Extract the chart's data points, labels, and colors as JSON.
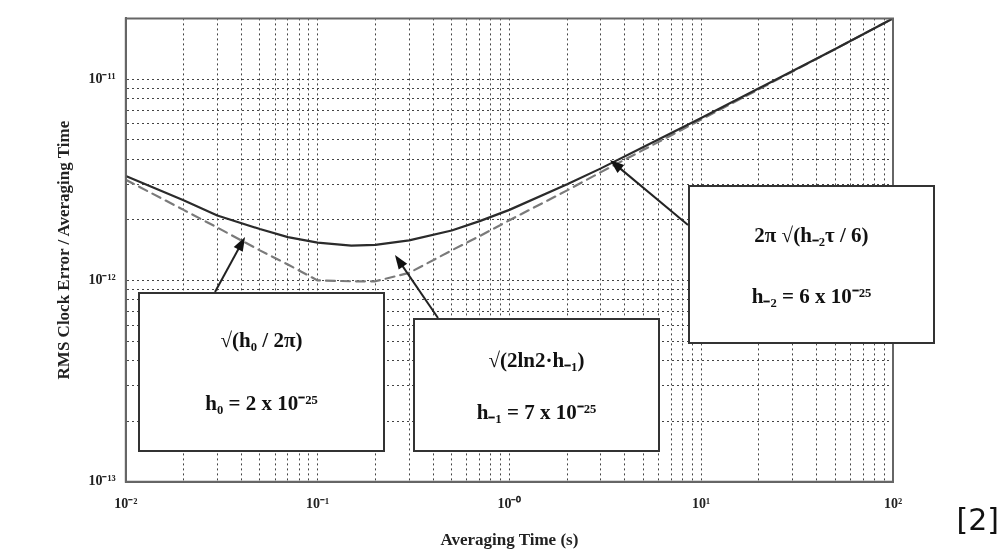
{
  "chart_data": {
    "type": "line",
    "xlabel": "Averaging Time (s)",
    "ylabel": "RMS Clock Error / Averaging Time",
    "log": "xy",
    "grid": true,
    "legend": false,
    "marker": "none",
    "x": [
      0.01,
      0.02,
      0.03,
      0.05,
      0.07,
      0.1,
      0.15,
      0.2,
      0.3,
      0.5,
      0.7,
      1,
      2,
      3,
      5,
      10,
      20,
      50,
      100
    ],
    "series": [
      {
        "color": "#2b2b2b",
        "line_style": "solid",
        "values": [
          3.3e-12,
          2.5e-12,
          2.1e-12,
          1.8e-12,
          1.64e-12,
          1.54e-12,
          1.49e-12,
          1.5e-12,
          1.58e-12,
          1.77e-12,
          1.97e-12,
          2.24e-12,
          3e-12,
          3.6e-12,
          4.6e-12,
          6.4e-12,
          9e-12,
          1.41e-11,
          2e-11
        ]
      },
      {
        "color": "#7a7a7a",
        "line_style": "dashed",
        "values": [
          3.16e-12,
          2.24e-12,
          1.83e-12,
          1.41e-12,
          1.2e-12,
          1e-12,
          9.9e-13,
          9.9e-13,
          1.09e-12,
          1.41e-12,
          1.66e-12,
          1.99e-12,
          2.8e-12,
          3.45e-12,
          4.45e-12,
          6.3e-12,
          8.9e-12,
          1.41e-11,
          2e-11
        ]
      }
    ],
    "xlim": [
      0.01,
      100
    ],
    "ylim": [
      1e-13,
      2e-11
    ],
    "xticks": [
      {
        "value": 0.01,
        "label": "10⁻²"
      },
      {
        "value": 0.02,
        "label": null
      },
      {
        "value": 0.03,
        "label": null
      },
      {
        "value": 0.04,
        "label": null
      },
      {
        "value": 0.05,
        "label": null
      },
      {
        "value": 0.06,
        "label": null
      },
      {
        "value": 0.07,
        "label": null
      },
      {
        "value": 0.08,
        "label": null
      },
      {
        "value": 0.09,
        "label": null
      },
      {
        "value": 0.1,
        "label": "10⁻¹"
      },
      {
        "value": 0.2,
        "label": null
      },
      {
        "value": 0.3,
        "label": null
      },
      {
        "value": 0.4,
        "label": null
      },
      {
        "value": 0.5,
        "label": null
      },
      {
        "value": 0.6,
        "label": null
      },
      {
        "value": 0.7,
        "label": null
      },
      {
        "value": 0.8,
        "label": null
      },
      {
        "value": 0.9,
        "label": null
      },
      {
        "value": 1,
        "label": "10⁻⁰"
      },
      {
        "value": 2,
        "label": null
      },
      {
        "value": 3,
        "label": null
      },
      {
        "value": 4,
        "label": null
      },
      {
        "value": 5,
        "label": null
      },
      {
        "value": 6,
        "label": null
      },
      {
        "value": 7,
        "label": null
      },
      {
        "value": 8,
        "label": null
      },
      {
        "value": 9,
        "label": null
      },
      {
        "value": 10,
        "label": "10¹"
      },
      {
        "value": 20,
        "label": null
      },
      {
        "value": 30,
        "label": null
      },
      {
        "value": 40,
        "label": null
      },
      {
        "value": 50,
        "label": null
      },
      {
        "value": 60,
        "label": null
      },
      {
        "value": 70,
        "label": null
      },
      {
        "value": 80,
        "label": null
      },
      {
        "value": 90,
        "label": null
      },
      {
        "value": 100,
        "label": "10²"
      }
    ],
    "yticks": [
      {
        "value": 1e-13,
        "label": "10⁻¹³"
      },
      {
        "value": 2e-13,
        "label": null
      },
      {
        "value": 3e-13,
        "label": null
      },
      {
        "value": 4e-13,
        "label": null
      },
      {
        "value": 5e-13,
        "label": null
      },
      {
        "value": 6e-13,
        "label": null
      },
      {
        "value": 7e-13,
        "label": null
      },
      {
        "value": 8e-13,
        "label": null
      },
      {
        "value": 9e-13,
        "label": null
      },
      {
        "value": 1e-12,
        "label": "10⁻¹²"
      },
      {
        "value": 2e-12,
        "label": null
      },
      {
        "value": 3e-12,
        "label": null
      },
      {
        "value": 4e-12,
        "label": null
      },
      {
        "value": 5e-12,
        "label": null
      },
      {
        "value": 6e-12,
        "label": null
      },
      {
        "value": 7e-12,
        "label": null
      },
      {
        "value": 8e-12,
        "label": null
      },
      {
        "value": 9e-12,
        "label": null
      },
      {
        "value": 1e-11,
        "label": "10⁻¹¹"
      }
    ],
    "annotations": [
      "√(h₀ / 2π)\nh₀ = 2 x 10⁻²⁵",
      "√(2ln2·h₋₁)\nh₋₁ = 7 x 10⁻²⁵",
      "2π √(h₋₂τ / 6)\nh₋₂ = 6 x 10⁻²⁵",
      "[2]"
    ]
  }
}
